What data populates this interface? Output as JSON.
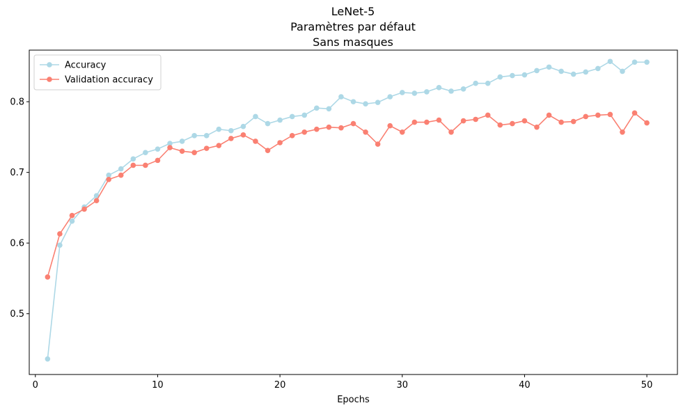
{
  "chart_data": {
    "type": "line",
    "title_lines": [
      "LeNet-5",
      "Paramètres par défaut",
      "Sans masques"
    ],
    "xlabel": "Epochs",
    "ylabel": "",
    "xlim": [
      -0.5,
      52.5
    ],
    "ylim": [
      0.414,
      0.873
    ],
    "xticks": [
      0,
      10,
      20,
      30,
      40,
      50
    ],
    "yticks": [
      0.5,
      0.6,
      0.7,
      0.8
    ],
    "grid": false,
    "legend_position": "top-left",
    "x": [
      1,
      2,
      3,
      4,
      5,
      6,
      7,
      8,
      9,
      10,
      11,
      12,
      13,
      14,
      15,
      16,
      17,
      18,
      19,
      20,
      21,
      22,
      23,
      24,
      25,
      26,
      27,
      28,
      29,
      30,
      31,
      32,
      33,
      34,
      35,
      36,
      37,
      38,
      39,
      40,
      41,
      42,
      43,
      44,
      45,
      46,
      47,
      48,
      49,
      50
    ],
    "series": [
      {
        "name": "Accuracy",
        "color": "#add8e6",
        "values": [
          0.436,
          0.597,
          0.631,
          0.651,
          0.667,
          0.696,
          0.705,
          0.719,
          0.728,
          0.733,
          0.741,
          0.744,
          0.752,
          0.752,
          0.761,
          0.759,
          0.765,
          0.779,
          0.769,
          0.774,
          0.779,
          0.781,
          0.791,
          0.79,
          0.807,
          0.8,
          0.797,
          0.799,
          0.807,
          0.813,
          0.812,
          0.814,
          0.82,
          0.815,
          0.818,
          0.826,
          0.826,
          0.835,
          0.837,
          0.838,
          0.844,
          0.849,
          0.843,
          0.839,
          0.842,
          0.847,
          0.857,
          0.843,
          0.856,
          0.856
        ]
      },
      {
        "name": "Validation accuracy",
        "color": "#fa8072",
        "values": [
          0.552,
          0.613,
          0.639,
          0.648,
          0.66,
          0.69,
          0.696,
          0.71,
          0.71,
          0.717,
          0.735,
          0.73,
          0.728,
          0.734,
          0.738,
          0.748,
          0.753,
          0.744,
          0.731,
          0.742,
          0.752,
          0.757,
          0.761,
          0.764,
          0.763,
          0.769,
          0.757,
          0.74,
          0.766,
          0.757,
          0.771,
          0.771,
          0.774,
          0.757,
          0.773,
          0.775,
          0.781,
          0.767,
          0.769,
          0.773,
          0.764,
          0.781,
          0.771,
          0.772,
          0.779,
          0.781,
          0.782,
          0.757,
          0.784,
          0.77
        ]
      }
    ]
  }
}
